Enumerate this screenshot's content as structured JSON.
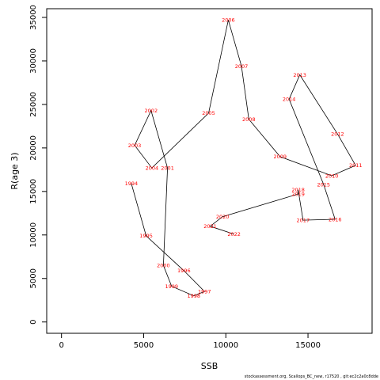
{
  "chart_data": {
    "type": "line",
    "title": "",
    "xlabel": "SSB",
    "ylabel": "R(age 3)",
    "xlim": [
      -900,
      18900
    ],
    "ylim": [
      -1300,
      36000
    ],
    "x_ticks": [
      0,
      5000,
      10000,
      15000
    ],
    "y_ticks": [
      0,
      5000,
      10000,
      15000,
      20000,
      25000,
      30000,
      35000
    ],
    "grid": false,
    "line_color": "#000000",
    "label_color": "#ff0000",
    "points": [
      {
        "year": "1994",
        "x": 4250,
        "y": 15900
      },
      {
        "year": "1995",
        "x": 5150,
        "y": 9900
      },
      {
        "year": "1996",
        "x": 7450,
        "y": 5900
      },
      {
        "year": "1997",
        "x": 8700,
        "y": 3500
      },
      {
        "year": "1998",
        "x": 8050,
        "y": 3000
      },
      {
        "year": "1999",
        "x": 6700,
        "y": 4100
      },
      {
        "year": "2000",
        "x": 6200,
        "y": 6500
      },
      {
        "year": "2001",
        "x": 6450,
        "y": 17700
      },
      {
        "year": "2002",
        "x": 5450,
        "y": 24300
      },
      {
        "year": "2003",
        "x": 4450,
        "y": 20300
      },
      {
        "year": "2004",
        "x": 5500,
        "y": 17700
      },
      {
        "year": "2005",
        "x": 8950,
        "y": 24000
      },
      {
        "year": "2006",
        "x": 10150,
        "y": 34700
      },
      {
        "year": "2007",
        "x": 10950,
        "y": 29400
      },
      {
        "year": "2008",
        "x": 11400,
        "y": 23300
      },
      {
        "year": "2009",
        "x": 13300,
        "y": 19000
      },
      {
        "year": "2010",
        "x": 16450,
        "y": 16800
      },
      {
        "year": "2011",
        "x": 17900,
        "y": 18000
      },
      {
        "year": "2012",
        "x": 16800,
        "y": 21600
      },
      {
        "year": "2013",
        "x": 14500,
        "y": 28400
      },
      {
        "year": "2014",
        "x": 13850,
        "y": 25600
      },
      {
        "year": "2015",
        "x": 15950,
        "y": 15800
      },
      {
        "year": "2016",
        "x": 16650,
        "y": 11800
      },
      {
        "year": "2017",
        "x": 14700,
        "y": 11700
      },
      {
        "year": "2018",
        "x": 14400,
        "y": 15200
      },
      {
        "year": "2019",
        "x": 14400,
        "y": 14700
      },
      {
        "year": "2020",
        "x": 9800,
        "y": 12100
      },
      {
        "year": "2021",
        "x": 9050,
        "y": 11000
      },
      {
        "year": "2022",
        "x": 10500,
        "y": 10100
      }
    ]
  },
  "footer_text": "stockassessment.org, Scallops_BC_new, r17520 , git:ec2c2a0c8dde"
}
